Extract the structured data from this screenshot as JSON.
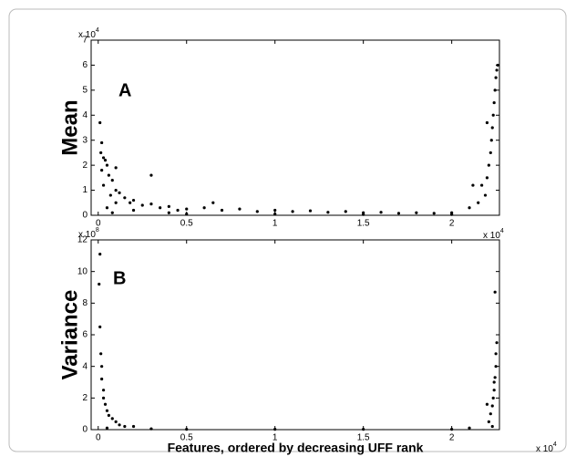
{
  "chart_data": [
    {
      "type": "scatter",
      "panel_label": "A",
      "y_label": "Mean",
      "y_multiplier": {
        "base": "x 10",
        "exponent": "4"
      },
      "x_multiplier": {
        "base": "x 10",
        "exponent": "4"
      },
      "color": "#000000",
      "xlim": [
        -0.04,
        2.27
      ],
      "ylim": [
        0,
        7
      ],
      "xticks": [
        0,
        0.5,
        1,
        1.5,
        2
      ],
      "yticks": [
        0,
        1,
        2,
        3,
        4,
        5,
        6,
        7
      ],
      "x": [
        0.01,
        0.02,
        0.015,
        0.03,
        0.04,
        0.05,
        0.02,
        0.06,
        0.08,
        0.03,
        0.1,
        0.12,
        0.07,
        0.15,
        0.2,
        0.18,
        0.25,
        0.3,
        0.35,
        0.4,
        0.45,
        0.5,
        0.6,
        0.7,
        0.8,
        0.9,
        1.0,
        1.1,
        1.2,
        1.3,
        1.4,
        1.5,
        1.6,
        1.7,
        1.8,
        1.9,
        2.0,
        0.05,
        0.1,
        0.2,
        0.4,
        0.65,
        0.3,
        0.1,
        2.1,
        2.15,
        2.17,
        2.19,
        2.2,
        2.21,
        2.22,
        2.225,
        2.23,
        2.235,
        2.24,
        2.245,
        2.25,
        2.255,
        2.26,
        2.2,
        2.12,
        0.08,
        0.5,
        1.0,
        1.5,
        2.0
      ],
      "values": [
        3.7,
        2.9,
        2.5,
        2.3,
        2.2,
        2.0,
        1.8,
        1.6,
        1.4,
        1.2,
        1.0,
        0.9,
        0.8,
        0.7,
        0.6,
        0.5,
        0.4,
        0.45,
        0.3,
        0.35,
        0.2,
        0.25,
        0.3,
        0.2,
        0.25,
        0.15,
        0.2,
        0.15,
        0.18,
        0.12,
        0.15,
        0.1,
        0.12,
        0.08,
        0.1,
        0.08,
        0.1,
        0.3,
        0.5,
        0.2,
        0.1,
        0.5,
        1.6,
        1.9,
        0.3,
        0.5,
        1.2,
        0.8,
        1.5,
        2.0,
        2.5,
        3.0,
        3.5,
        4.0,
        4.5,
        5.0,
        5.5,
        5.8,
        6.0,
        3.7,
        1.2,
        0.1,
        0.05,
        0.05,
        0.03,
        0.03
      ]
    },
    {
      "type": "scatter",
      "panel_label": "B",
      "y_label": "Variance",
      "x_label": "Features, ordered by decreasing UFF rank",
      "y_multiplier": {
        "base": "x 10",
        "exponent": "8"
      },
      "x_multiplier": {
        "base": "x 10",
        "exponent": "4"
      },
      "color": "#000000",
      "xlim": [
        -0.04,
        2.27
      ],
      "ylim": [
        0,
        12
      ],
      "xticks": [
        0,
        0.5,
        1,
        1.5,
        2
      ],
      "yticks": [
        0,
        2,
        4,
        6,
        8,
        10,
        12
      ],
      "x": [
        0.01,
        0.005,
        0.01,
        0.015,
        0.02,
        0.02,
        0.03,
        0.03,
        0.04,
        0.05,
        0.06,
        0.08,
        0.1,
        0.12,
        0.15,
        0.2,
        0.05,
        0.3,
        0.5,
        1.0,
        1.5,
        2.0,
        2.1,
        2.2,
        2.21,
        2.22,
        2.23,
        2.235,
        2.24,
        2.24,
        2.245,
        2.25,
        2.25,
        2.255,
        2.245,
        2.23
      ],
      "values": [
        11.1,
        9.2,
        6.5,
        4.8,
        4.0,
        3.2,
        2.5,
        2.0,
        1.6,
        1.2,
        0.9,
        0.7,
        0.5,
        0.3,
        0.2,
        0.2,
        0.1,
        0.05,
        0.02,
        0.02,
        0.02,
        0.02,
        0.1,
        1.6,
        0.5,
        1.0,
        1.5,
        2.0,
        2.5,
        3.0,
        3.3,
        4.0,
        4.8,
        5.5,
        8.7,
        0.2
      ]
    }
  ]
}
